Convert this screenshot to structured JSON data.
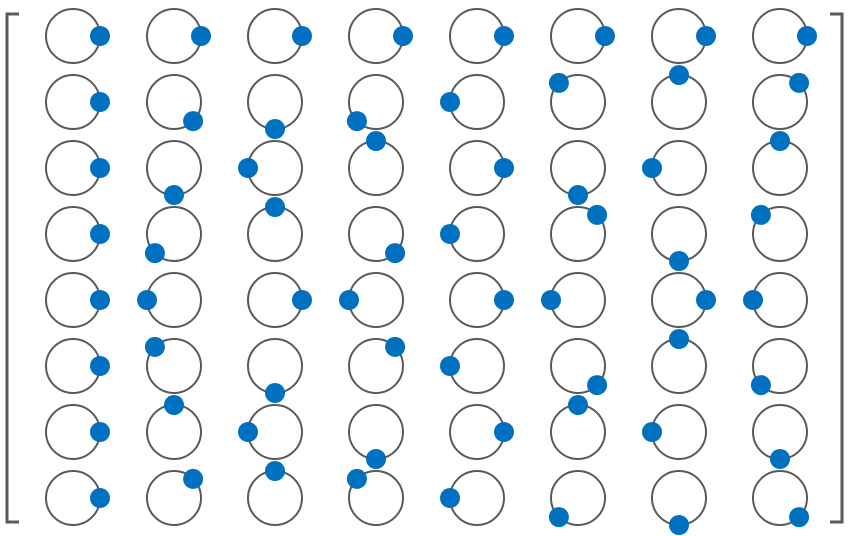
{
  "colors": {
    "circle_stroke": "#5a5a5a",
    "dot_fill": "#0070c0",
    "bracket": "#5a5a5a"
  },
  "matrix": {
    "rows": 8,
    "cols": 8,
    "angles_deg": [
      [
        0,
        0,
        0,
        0,
        0,
        0,
        0,
        0
      ],
      [
        0,
        45,
        90,
        135,
        180,
        225,
        270,
        315
      ],
      [
        0,
        90,
        180,
        270,
        0,
        90,
        180,
        270
      ],
      [
        0,
        135,
        270,
        45,
        180,
        315,
        90,
        225
      ],
      [
        0,
        180,
        0,
        180,
        0,
        180,
        0,
        180
      ],
      [
        0,
        225,
        90,
        315,
        180,
        45,
        270,
        135
      ],
      [
        0,
        270,
        180,
        90,
        0,
        270,
        180,
        90
      ],
      [
        0,
        315,
        270,
        225,
        180,
        135,
        90,
        45
      ]
    ]
  }
}
